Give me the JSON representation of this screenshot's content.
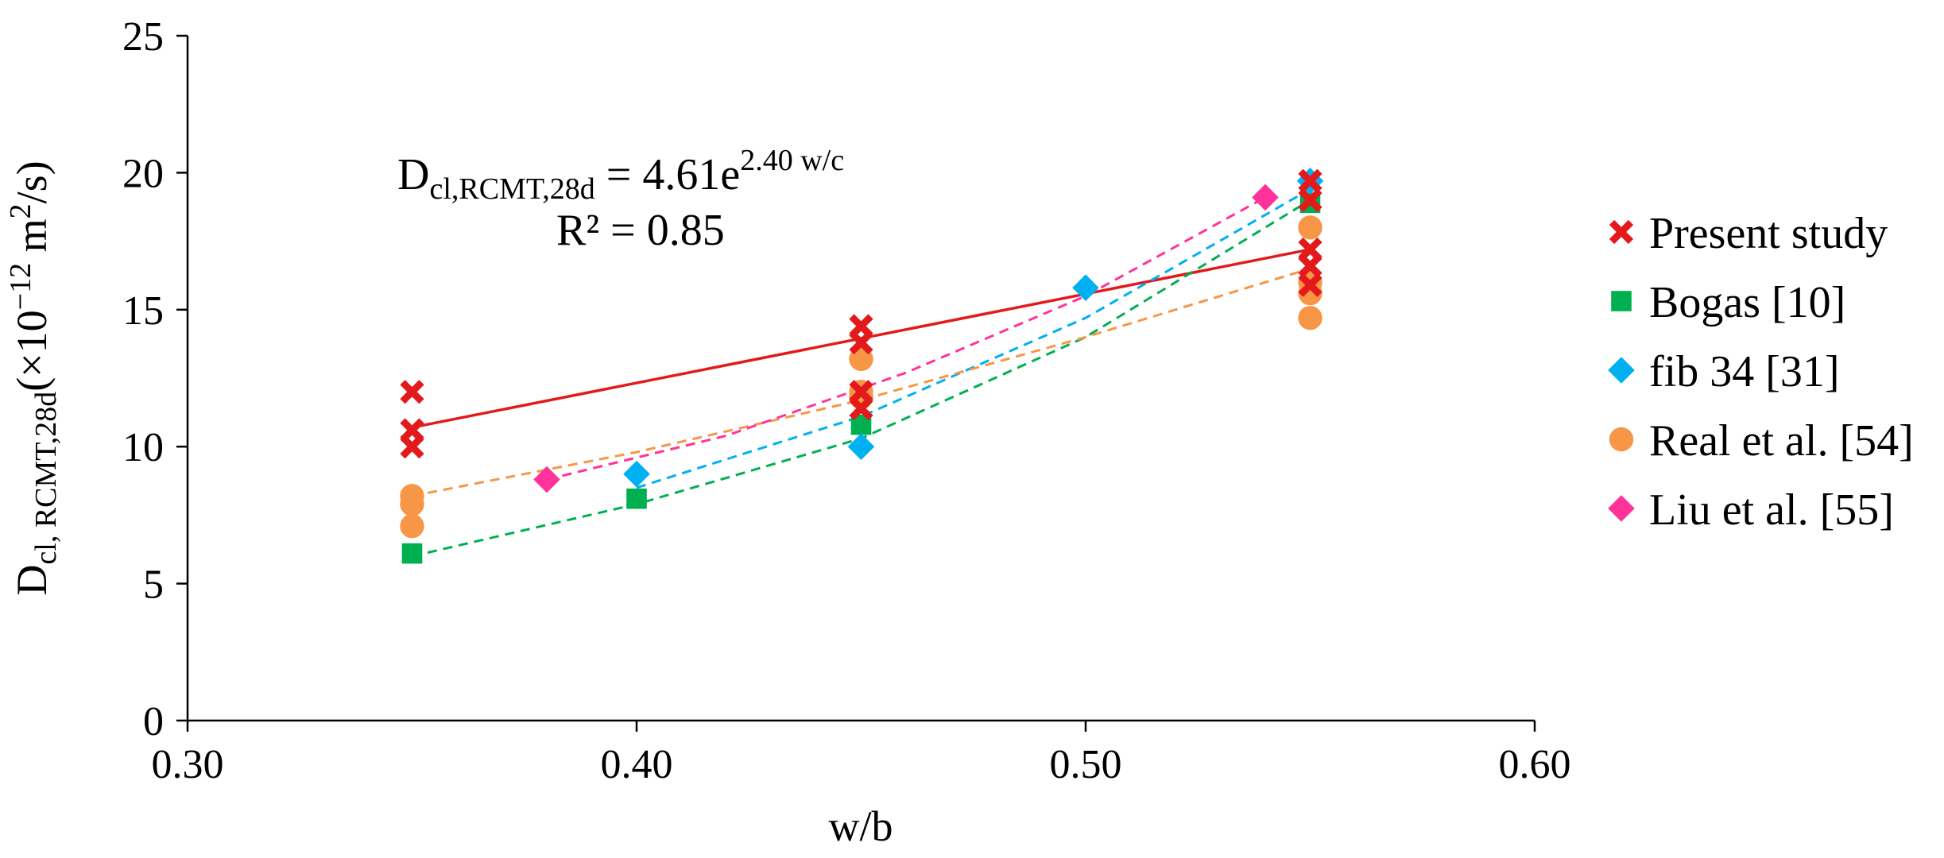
{
  "chart_data": {
    "type": "scatter",
    "title": "",
    "xlabel": "w/b",
    "ylabel": {
      "main": "D",
      "sub": "cl, RCMT,28d",
      "unit_prefix": "(×10",
      "unit_exp": "−12",
      "unit_mid": " m",
      "unit_sq": "2",
      "unit_end": "/s)"
    },
    "xlim": [
      0.3,
      0.6
    ],
    "ylim": [
      0,
      25
    ],
    "x_ticks": [
      "0.30",
      "0.40",
      "0.50",
      "0.60"
    ],
    "y_ticks": [
      "0",
      "5",
      "10",
      "15",
      "20",
      "25"
    ],
    "grid": false,
    "legend_position": "right",
    "annotation": {
      "eq_lhs": "D",
      "eq_sub": "cl,RCMT,28d",
      "eq_mid": " = 4.61e",
      "eq_sup": "2.40 w/c",
      "r2": "R² = 0.85"
    },
    "series": [
      {
        "name": "Present study",
        "marker": "x",
        "color": "#e31a1c",
        "points": [
          [
            0.35,
            12.0
          ],
          [
            0.35,
            10.6
          ],
          [
            0.35,
            10.0
          ],
          [
            0.45,
            14.4
          ],
          [
            0.45,
            13.8
          ],
          [
            0.45,
            12.0
          ],
          [
            0.45,
            11.4
          ],
          [
            0.55,
            19.7
          ],
          [
            0.55,
            19.0
          ],
          [
            0.55,
            17.2
          ],
          [
            0.55,
            16.6
          ],
          [
            0.55,
            15.9
          ]
        ],
        "trend": {
          "type": "solid",
          "x": [
            0.35,
            0.55
          ],
          "y": [
            10.7,
            17.2
          ]
        }
      },
      {
        "name": "Bogas [10]",
        "marker": "square",
        "color": "#00b050",
        "points": [
          [
            0.35,
            6.1
          ],
          [
            0.4,
            8.1
          ],
          [
            0.45,
            10.8
          ],
          [
            0.55,
            18.9
          ]
        ],
        "trend": {
          "type": "dashed",
          "x": [
            0.35,
            0.4,
            0.45,
            0.5,
            0.55
          ],
          "y": [
            6.0,
            7.9,
            10.3,
            14.0,
            19.0
          ]
        }
      },
      {
        "name": "fib 34 [31]",
        "marker": "diamond",
        "color": "#00b0f0",
        "points": [
          [
            0.4,
            9.0
          ],
          [
            0.45,
            10.0
          ],
          [
            0.5,
            15.8
          ],
          [
            0.55,
            19.7
          ]
        ],
        "trend": {
          "type": "dashed",
          "x": [
            0.4,
            0.45,
            0.5,
            0.55
          ],
          "y": [
            8.5,
            11.1,
            14.7,
            19.4
          ]
        }
      },
      {
        "name": "Real et al. [54]",
        "marker": "circle",
        "color": "#f79646",
        "points": [
          [
            0.35,
            8.2
          ],
          [
            0.35,
            7.9
          ],
          [
            0.35,
            7.1
          ],
          [
            0.45,
            13.2
          ],
          [
            0.45,
            12.0
          ],
          [
            0.45,
            11.8
          ],
          [
            0.55,
            18.0
          ],
          [
            0.55,
            16.0
          ],
          [
            0.55,
            15.6
          ],
          [
            0.55,
            14.7
          ]
        ],
        "trend": {
          "type": "dashed",
          "x": [
            0.35,
            0.4,
            0.45,
            0.5,
            0.55
          ],
          "y": [
            8.2,
            9.8,
            11.7,
            14.0,
            16.5
          ]
        }
      },
      {
        "name": "Liu et al. [55]",
        "marker": "diamond",
        "color": "#ff3399",
        "points": [
          [
            0.38,
            8.8
          ],
          [
            0.54,
            19.1
          ]
        ],
        "trend": {
          "type": "dashed",
          "x": [
            0.38,
            0.42,
            0.46,
            0.5,
            0.54
          ],
          "y": [
            8.8,
            10.4,
            12.7,
            15.5,
            19.1
          ]
        }
      }
    ]
  }
}
